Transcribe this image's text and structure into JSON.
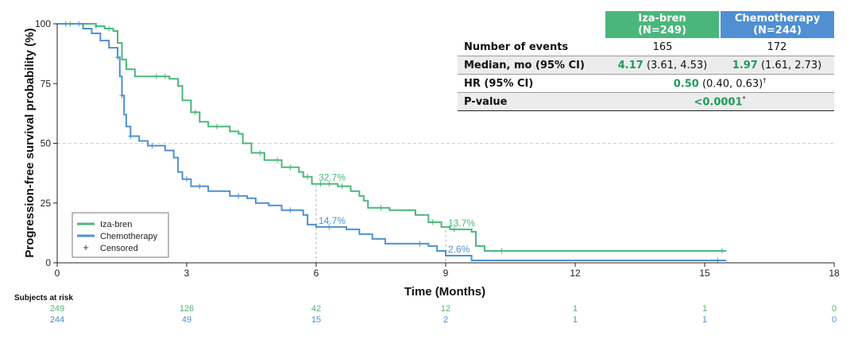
{
  "chart_data": {
    "type": "line",
    "xlabel": "Time (Months)",
    "ylabel": "Progression-free survival probability (%)",
    "xlim": [
      0,
      18
    ],
    "ylim": [
      0,
      100
    ],
    "x_ticks": [
      "0",
      "3",
      "6",
      "9",
      "12",
      "15",
      "18"
    ],
    "y_ticks": [
      "0",
      "25",
      "50",
      "75",
      "100"
    ],
    "gridline_y": 50,
    "step_plot": true,
    "colors": {
      "iza": "#4bb67a",
      "chemo": "#4f8fd2"
    },
    "series": [
      {
        "name": "Iza-bren",
        "color": "#4bb67a",
        "points": [
          [
            0,
            100
          ],
          [
            0.6,
            100
          ],
          [
            0.9,
            99
          ],
          [
            1.1,
            98
          ],
          [
            1.3,
            97
          ],
          [
            1.4,
            92
          ],
          [
            1.5,
            85
          ],
          [
            1.6,
            81
          ],
          [
            1.8,
            78
          ],
          [
            2.6,
            77
          ],
          [
            2.8,
            74
          ],
          [
            2.9,
            68
          ],
          [
            3.1,
            63
          ],
          [
            3.3,
            59
          ],
          [
            3.5,
            57
          ],
          [
            4.0,
            55
          ],
          [
            4.2,
            54
          ],
          [
            4.3,
            50
          ],
          [
            4.5,
            46
          ],
          [
            4.8,
            43
          ],
          [
            5.2,
            40
          ],
          [
            5.6,
            38
          ],
          [
            5.7,
            36
          ],
          [
            5.9,
            33
          ],
          [
            6.5,
            32
          ],
          [
            6.8,
            30
          ],
          [
            7.0,
            28
          ],
          [
            7.1,
            26
          ],
          [
            7.2,
            23
          ],
          [
            7.7,
            22
          ],
          [
            8.3,
            20
          ],
          [
            8.6,
            17
          ],
          [
            8.9,
            15
          ],
          [
            9.1,
            14
          ],
          [
            9.6,
            13
          ],
          [
            9.7,
            7
          ],
          [
            9.9,
            5
          ],
          [
            15.5,
            5
          ]
        ],
        "censored": [
          [
            0.3,
            100
          ],
          [
            0.9,
            99
          ],
          [
            1.2,
            97
          ],
          [
            2.3,
            78
          ],
          [
            2.5,
            77
          ],
          [
            3.2,
            61
          ],
          [
            3.7,
            57
          ],
          [
            4.7,
            44
          ],
          [
            5.1,
            40
          ],
          [
            5.4,
            39
          ],
          [
            5.8,
            35
          ],
          [
            6.1,
            33
          ],
          [
            6.3,
            32
          ],
          [
            6.6,
            31
          ],
          [
            7.5,
            22
          ],
          [
            8.7,
            16
          ],
          [
            9.2,
            14
          ],
          [
            10.3,
            5
          ],
          [
            15.4,
            5
          ]
        ]
      },
      {
        "name": "Chemotherapy",
        "color": "#4f8fd2",
        "points": [
          [
            0,
            100
          ],
          [
            0.6,
            98
          ],
          [
            0.8,
            96
          ],
          [
            1.0,
            93
          ],
          [
            1.2,
            90
          ],
          [
            1.4,
            86
          ],
          [
            1.45,
            78
          ],
          [
            1.5,
            70
          ],
          [
            1.55,
            62
          ],
          [
            1.6,
            57
          ],
          [
            1.7,
            53
          ],
          [
            1.9,
            51
          ],
          [
            2.1,
            49
          ],
          [
            2.5,
            47
          ],
          [
            2.7,
            44
          ],
          [
            2.8,
            38
          ],
          [
            2.9,
            35
          ],
          [
            3.1,
            32
          ],
          [
            3.5,
            30
          ],
          [
            4.0,
            28
          ],
          [
            4.4,
            27
          ],
          [
            4.6,
            25
          ],
          [
            4.9,
            24
          ],
          [
            5.2,
            22
          ],
          [
            5.6,
            22
          ],
          [
            5.7,
            20
          ],
          [
            5.8,
            16
          ],
          [
            6.0,
            15
          ],
          [
            6.7,
            14
          ],
          [
            7.0,
            12
          ],
          [
            7.3,
            10
          ],
          [
            7.6,
            8
          ],
          [
            8.6,
            7
          ],
          [
            8.8,
            5
          ],
          [
            9.0,
            3
          ],
          [
            9.6,
            1
          ],
          [
            15.5,
            1
          ]
        ],
        "censored": [
          [
            0.2,
            100
          ],
          [
            0.5,
            98
          ],
          [
            1.4,
            80
          ],
          [
            1.5,
            66
          ],
          [
            1.7,
            53
          ],
          [
            2.2,
            48
          ],
          [
            3.0,
            33
          ],
          [
            3.3,
            31
          ],
          [
            4.2,
            27
          ],
          [
            5.4,
            22
          ],
          [
            6.3,
            15
          ],
          [
            8.4,
            7
          ],
          [
            15.3,
            1
          ]
        ]
      }
    ],
    "annotations": [
      {
        "label": "32.7%",
        "x": 6,
        "y": 32.7,
        "series": "iza"
      },
      {
        "label": "14.7%",
        "x": 6,
        "y": 14.7,
        "series": "chemo"
      },
      {
        "label": "13.7%",
        "x": 9,
        "y": 13.7,
        "series": "iza"
      },
      {
        "label": "2.6%",
        "x": 9,
        "y": 2.6,
        "series": "chemo"
      }
    ],
    "legend": {
      "position": "bottom-left",
      "items": [
        "Iza-bren",
        "Chemotherapy",
        "Censored"
      ],
      "censored_symbol": "+"
    },
    "risk_table": {
      "title": "Subjects at risk",
      "times": [
        0,
        3,
        6,
        9,
        12,
        15,
        18
      ],
      "iza": [
        "249",
        "126",
        "42",
        "12",
        "1",
        "1",
        "0"
      ],
      "chemo": [
        "244",
        "49",
        "15",
        "2",
        "1",
        "1",
        "0"
      ]
    }
  },
  "stats_table": {
    "headers": {
      "iza": "Iza-bren",
      "iza_n": "(N=249)",
      "chemo": "Chemotherapy",
      "chemo_n": "(N=244)"
    },
    "rows": {
      "events": {
        "label": "Number of events",
        "iza": "165",
        "chemo": "172"
      },
      "median": {
        "label": "Median, mo (95% CI)",
        "iza_value": "4.17",
        "iza_ci": " (3.61, 4.53)",
        "chemo_value": "1.97",
        "chemo_ci": " (1.61, 2.73)"
      },
      "hr": {
        "label": "HR (95% CI)",
        "value": "0.50",
        "ci": " (0.40, 0.63)",
        "mark": "†"
      },
      "p": {
        "label": "P-value",
        "value": "<0.0001",
        "mark": "*"
      }
    }
  }
}
